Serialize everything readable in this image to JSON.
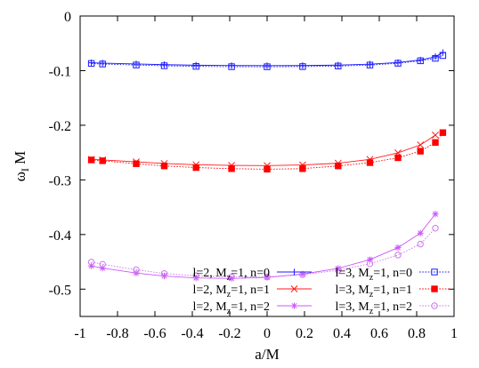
{
  "chart_data": {
    "type": "line",
    "xlabel": "a/M",
    "ylabel_main": "ω",
    "ylabel_sub": "I",
    "ylabel_tail": " M",
    "xlim": [
      -1,
      1
    ],
    "ylim": [
      -0.55,
      0
    ],
    "xticks": [
      -1,
      -0.8,
      -0.6,
      -0.4,
      -0.2,
      0,
      0.2,
      0.4,
      0.6,
      0.8,
      1
    ],
    "xtick_labels": [
      "-1",
      "-0.8",
      "-0.6",
      "-0.4",
      "-0.2",
      "0",
      "0.2",
      "0.4",
      "0.6",
      "0.8",
      "1"
    ],
    "yticks": [
      0,
      -0.1,
      -0.2,
      -0.3,
      -0.4,
      -0.5
    ],
    "ytick_labels": [
      "0",
      "-0.1",
      "-0.2",
      "-0.3",
      "-0.4",
      "-0.5"
    ],
    "grid": false,
    "legend_position": "bottom-right",
    "series": [
      {
        "label_pre": "l=2, M",
        "label_sub": "z",
        "label_post": "=1, n=0",
        "color": "#1a1aff",
        "marker": "plus",
        "style": "solid",
        "x": [
          -0.94,
          -0.88,
          -0.7,
          -0.55,
          -0.38,
          -0.19,
          0,
          0.19,
          0.38,
          0.55,
          0.7,
          0.82,
          0.9,
          0.94
        ],
        "y": [
          -0.0856,
          -0.0863,
          -0.0878,
          -0.0891,
          -0.0901,
          -0.0907,
          -0.0909,
          -0.0907,
          -0.0899,
          -0.0882,
          -0.0851,
          -0.0805,
          -0.0745,
          -0.0668
        ]
      },
      {
        "label_pre": "l=2, M",
        "label_sub": "z",
        "label_post": "=1, n=1",
        "color": "#ff1a1a",
        "marker": "x",
        "style": "solid",
        "x": [
          -0.94,
          -0.88,
          -0.7,
          -0.55,
          -0.38,
          -0.19,
          0,
          0.19,
          0.38,
          0.55,
          0.7,
          0.82,
          0.9
        ],
        "y": [
          -0.2625,
          -0.2635,
          -0.267,
          -0.27,
          -0.2722,
          -0.2735,
          -0.2739,
          -0.2727,
          -0.2695,
          -0.2625,
          -0.2505,
          -0.236,
          -0.218
        ]
      },
      {
        "label_pre": "l=2, M",
        "label_sub": "z",
        "label_post": "=1, n=2",
        "color": "#cc55ff",
        "marker": "star",
        "style": "solid",
        "x": [
          -0.94,
          -0.88,
          -0.7,
          -0.55,
          -0.38,
          -0.19,
          0,
          0.19,
          0.38,
          0.55,
          0.7,
          0.82,
          0.9
        ],
        "y": [
          -0.4575,
          -0.4615,
          -0.4705,
          -0.476,
          -0.4795,
          -0.4805,
          -0.4785,
          -0.4725,
          -0.462,
          -0.446,
          -0.424,
          -0.3975,
          -0.3625
        ]
      },
      {
        "label_pre": "l=3, M",
        "label_sub": "z",
        "label_post": "=1, n=0",
        "color": "#1a1aff",
        "marker": "square-open",
        "style": "dotted",
        "x": [
          -0.94,
          -0.88,
          -0.7,
          -0.55,
          -0.38,
          -0.19,
          0,
          0.19,
          0.38,
          0.55,
          0.7,
          0.82,
          0.9,
          0.94
        ],
        "y": [
          -0.0869,
          -0.0879,
          -0.0897,
          -0.0911,
          -0.0922,
          -0.0928,
          -0.0929,
          -0.0926,
          -0.0916,
          -0.0898,
          -0.0865,
          -0.082,
          -0.0775,
          -0.0724
        ]
      },
      {
        "label_pre": "l=3, M",
        "label_sub": "z",
        "label_post": "=1, n=1",
        "color": "#ff0000",
        "marker": "square-filled",
        "style": "dotted",
        "x": [
          -0.94,
          -0.88,
          -0.7,
          -0.55,
          -0.38,
          -0.19,
          0,
          0.19,
          0.38,
          0.55,
          0.7,
          0.82,
          0.9,
          0.94
        ],
        "y": [
          -0.2635,
          -0.265,
          -0.2705,
          -0.2745,
          -0.2775,
          -0.2795,
          -0.2805,
          -0.2795,
          -0.2745,
          -0.2685,
          -0.2595,
          -0.2475,
          -0.2315,
          -0.2135
        ]
      },
      {
        "label_pre": "l=3, M",
        "label_sub": "z",
        "label_post": "=1, n=2",
        "color": "#cc77ee",
        "marker": "circle-open",
        "style": "dotted",
        "x": [
          -0.94,
          -0.88,
          -0.7,
          -0.55,
          -0.38,
          -0.19,
          0,
          0.19,
          0.38,
          0.55,
          0.7,
          0.82,
          0.9
        ],
        "y": [
          -0.4505,
          -0.4545,
          -0.4645,
          -0.4715,
          -0.4755,
          -0.4775,
          -0.4775,
          -0.4735,
          -0.4655,
          -0.4535,
          -0.4375,
          -0.4175,
          -0.3885
        ]
      }
    ]
  }
}
